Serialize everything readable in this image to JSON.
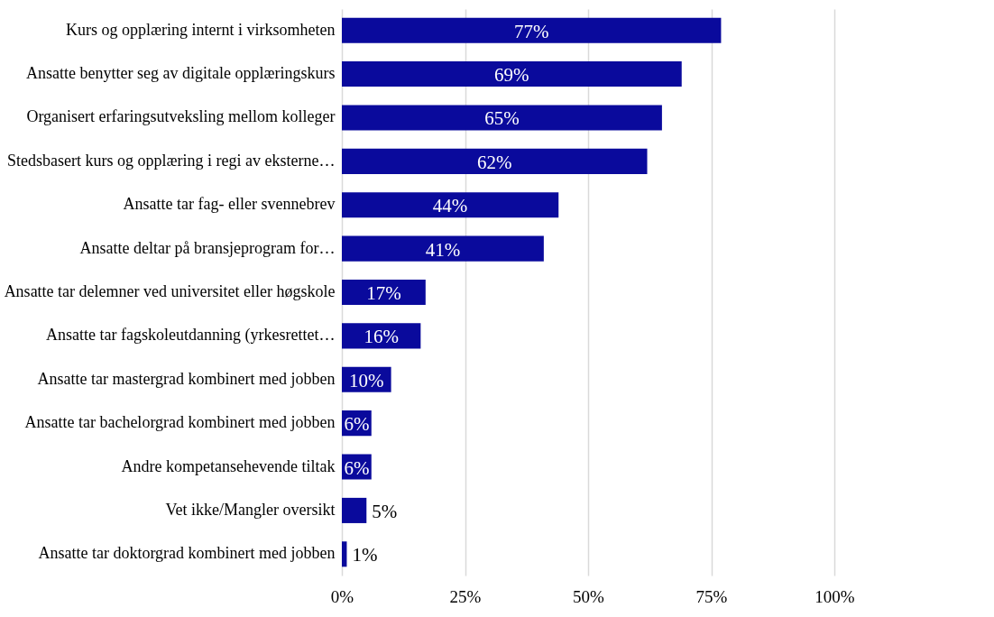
{
  "chart_data": {
    "type": "bar",
    "orientation": "horizontal",
    "categories": [
      "Kurs og opplæring internt i virksomheten",
      "Ansatte benytter seg av digitale opplæringskurs",
      "Organisert erfaringsutveksling mellom kolleger",
      "Stedsbasert kurs og opplæring i regi av eksterne…",
      "Ansatte tar fag- eller svennebrev",
      "Ansatte deltar på bransjeprogram for…",
      "Ansatte tar delemner ved universitet eller høgskole",
      "Ansatte tar fagskoleutdanning (yrkesrettet…",
      "Ansatte tar mastergrad kombinert med jobben",
      "Ansatte tar bachelorgrad kombinert med jobben",
      "Andre kompetansehevende tiltak",
      "Vet ikke/Mangler oversikt",
      "Ansatte tar doktorgrad kombinert med jobben"
    ],
    "values": [
      77,
      69,
      65,
      62,
      44,
      41,
      17,
      16,
      10,
      6,
      6,
      5,
      1
    ],
    "value_labels": [
      "77%",
      "69%",
      "65%",
      "62%",
      "44%",
      "41%",
      "17%",
      "16%",
      "10%",
      "6%",
      "6%",
      "5%",
      "1%"
    ],
    "color": "#0a0a9c",
    "xlim": [
      0,
      100
    ],
    "xticks": [
      {
        "value": 0,
        "label": "0%"
      },
      {
        "value": 25,
        "label": "25%"
      },
      {
        "value": 50,
        "label": "50%"
      },
      {
        "value": 75,
        "label": "75%"
      },
      {
        "value": 100,
        "label": "100%"
      }
    ],
    "grid": "x"
  }
}
